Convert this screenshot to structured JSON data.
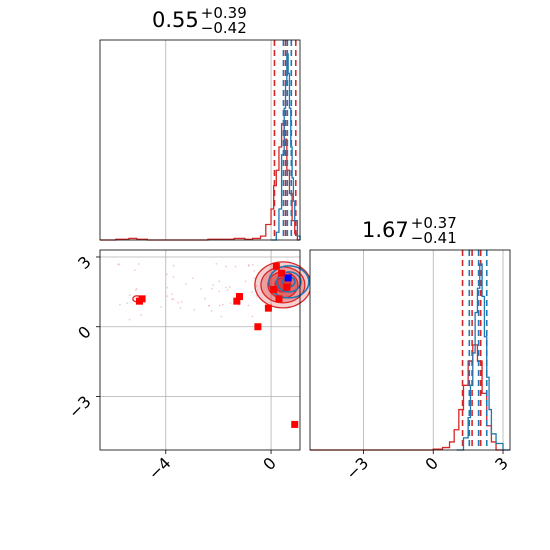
{
  "chart_data": [
    {
      "type": "histogram",
      "panel": "top-left",
      "title_value": "0.55",
      "title_plus": "+0.39",
      "title_minus": "−0.42",
      "xlim": [
        -6.5,
        1.1
      ],
      "x_gridlines": [
        -4,
        0
      ],
      "series": [
        {
          "color": "#d62728",
          "bins": [
            [
              -6.5,
              -5.9,
              0
            ],
            [
              -5.9,
              -5.4,
              1
            ],
            [
              -5.4,
              -5.1,
              2
            ],
            [
              -5.1,
              -4.7,
              1
            ],
            [
              -4.7,
              -4.4,
              0
            ],
            [
              -4.4,
              -3.6,
              0
            ],
            [
              -3.6,
              -2.4,
              0
            ],
            [
              -2.4,
              -1.9,
              1
            ],
            [
              -1.9,
              -1.4,
              1
            ],
            [
              -1.4,
              -1.0,
              2
            ],
            [
              -1.0,
              -0.7,
              1
            ],
            [
              -0.7,
              -0.4,
              2
            ],
            [
              -0.4,
              -0.2,
              5
            ],
            [
              -0.2,
              0.0,
              20
            ],
            [
              0.0,
              0.1,
              40
            ],
            [
              0.1,
              0.2,
              70
            ],
            [
              0.2,
              0.3,
              90
            ],
            [
              0.3,
              0.4,
              120
            ],
            [
              0.4,
              0.5,
              150
            ],
            [
              0.5,
              0.6,
              130
            ],
            [
              0.6,
              0.7,
              90
            ],
            [
              0.7,
              0.8,
              60
            ],
            [
              0.8,
              0.9,
              25
            ],
            [
              0.9,
              1.0,
              8
            ],
            [
              1.0,
              1.1,
              0
            ]
          ],
          "quantile_lines": [
            0.13,
            0.55,
            0.94
          ]
        },
        {
          "color": "#1f77b4",
          "bins": [
            [
              0.0,
              0.2,
              0
            ],
            [
              0.2,
              0.3,
              10
            ],
            [
              0.3,
              0.4,
              40
            ],
            [
              0.4,
              0.5,
              110
            ],
            [
              0.5,
              0.55,
              170
            ],
            [
              0.55,
              0.6,
              200
            ],
            [
              0.6,
              0.65,
              240
            ],
            [
              0.65,
              0.7,
              215
            ],
            [
              0.7,
              0.75,
              170
            ],
            [
              0.75,
              0.8,
              120
            ],
            [
              0.8,
              0.85,
              80
            ],
            [
              0.85,
              0.9,
              50
            ],
            [
              0.9,
              1.0,
              25
            ],
            [
              1.0,
              1.1,
              5
            ]
          ],
          "quantile_lines": [
            0.47,
            0.62,
            0.77
          ]
        }
      ]
    },
    {
      "type": "scatter",
      "panel": "bottom-left",
      "xlim": [
        -6.5,
        1.1
      ],
      "ylim": [
        -5.3,
        3.3
      ],
      "x_ticks": [
        -4,
        0
      ],
      "y_ticks": [
        3,
        0,
        -3
      ],
      "red_markers": [
        [
          0.2,
          2.6
        ],
        [
          0.4,
          2.3
        ],
        [
          -4.9,
          1.2
        ],
        [
          -5.0,
          1.1
        ],
        [
          -1.2,
          1.3
        ],
        [
          -1.3,
          1.1
        ],
        [
          -0.1,
          0.8
        ],
        [
          -0.5,
          0.0
        ],
        [
          0.9,
          -4.2
        ],
        [
          0.1,
          1.6
        ],
        [
          0.3,
          1.2
        ],
        [
          0.6,
          1.7
        ]
      ],
      "blue_markers": [
        [
          0.65,
          2.1
        ]
      ],
      "contour_center": [
        0.45,
        1.8
      ]
    },
    {
      "type": "histogram",
      "panel": "bottom-right",
      "title_value": "1.67",
      "title_plus": "+0.37",
      "title_minus": "−0.41",
      "xlim": [
        -5.3,
        3.3
      ],
      "x_ticks": [
        -3,
        0,
        3
      ],
      "series": [
        {
          "color": "#d62728",
          "bins": [
            [
              -5.3,
              0.0,
              0
            ],
            [
              0.0,
              0.4,
              1
            ],
            [
              0.4,
              0.7,
              3
            ],
            [
              0.7,
              0.9,
              10
            ],
            [
              0.9,
              1.1,
              25
            ],
            [
              1.1,
              1.3,
              50
            ],
            [
              1.3,
              1.5,
              80
            ],
            [
              1.5,
              1.7,
              110
            ],
            [
              1.7,
              1.9,
              130
            ],
            [
              1.9,
              2.1,
              110
            ],
            [
              2.1,
              2.3,
              70
            ],
            [
              2.3,
              2.5,
              30
            ],
            [
              2.5,
              2.7,
              10
            ],
            [
              2.7,
              3.0,
              0
            ]
          ],
          "quantile_lines": [
            1.26,
            1.67,
            2.04
          ]
        },
        {
          "color": "#1f77b4",
          "bins": [
            [
              1.0,
              1.3,
              0
            ],
            [
              1.3,
              1.5,
              15
            ],
            [
              1.5,
              1.6,
              40
            ],
            [
              1.6,
              1.7,
              80
            ],
            [
              1.7,
              1.8,
              120
            ],
            [
              1.8,
              1.9,
              170
            ],
            [
              1.9,
              2.0,
              200
            ],
            [
              2.0,
              2.1,
              230
            ],
            [
              2.1,
              2.2,
              190
            ],
            [
              2.2,
              2.3,
              140
            ],
            [
              2.3,
              2.4,
              90
            ],
            [
              2.4,
              2.5,
              50
            ],
            [
              2.5,
              2.7,
              20
            ],
            [
              2.7,
              3.0,
              8
            ],
            [
              3.0,
              3.3,
              0
            ]
          ],
          "quantile_lines": [
            1.55,
            1.95,
            2.3
          ]
        }
      ]
    }
  ],
  "tick_labels": {
    "left_x": [
      "−4",
      "0"
    ],
    "left_y": [
      "3",
      "0",
      "−3"
    ],
    "right_x": [
      "−3",
      "0",
      "3"
    ]
  }
}
